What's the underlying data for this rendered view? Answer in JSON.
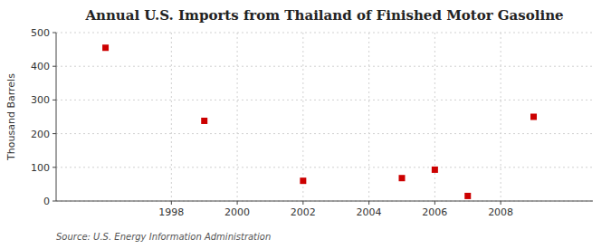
{
  "chart_data": {
    "type": "scatter",
    "title": "Annual U.S. Imports from Thailand of Finished Motor Gasoline",
    "y_label": "Thousand Barrels",
    "annotations": [
      "Source: U.S. Energy Information Administration"
    ],
    "x": [
      1996,
      1999,
      2002,
      2005,
      2006,
      2007,
      2009
    ],
    "values": [
      455,
      238,
      60,
      68,
      93,
      15,
      250
    ],
    "color": "#cc0000",
    "marker": "square",
    "xlim": [
      1994.5,
      2010.8
    ],
    "ylim": [
      0,
      500
    ],
    "xticks": [
      1998,
      2000,
      2002,
      2004,
      2006,
      2008
    ],
    "yticks": [
      0,
      100,
      200,
      300,
      400,
      500
    ],
    "grid": true
  }
}
